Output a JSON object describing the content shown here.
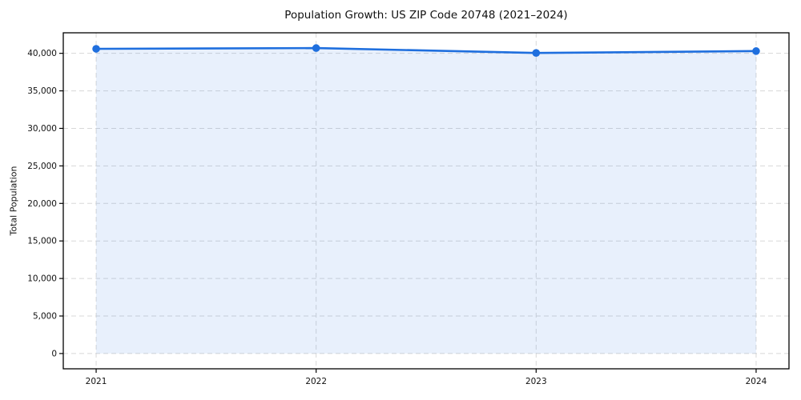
{
  "chart_data": {
    "type": "area",
    "title": "Population Growth: US ZIP Code 20748 (2021–2024)",
    "xlabel": "",
    "ylabel": "Total Population",
    "categories": [
      "2021",
      "2022",
      "2023",
      "2024"
    ],
    "values": [
      40600,
      40700,
      40050,
      40300
    ],
    "ylim": [
      -2035,
      42735
    ],
    "yticks": [
      0,
      5000,
      10000,
      15000,
      20000,
      25000,
      30000,
      35000,
      40000
    ],
    "ytick_labels": [
      "0",
      "5,000",
      "10,000",
      "15,000",
      "20,000",
      "25,000",
      "30,000",
      "35,000",
      "40,000"
    ],
    "grid": true,
    "grid_style": "dashed",
    "legend": false,
    "colors": {
      "line": "#1f6fde",
      "marker": "#1f6fde",
      "fill": "rgba(31,111,222,0.10)",
      "grid": "#d8d8d8",
      "frame": "#000000",
      "text": "#111111",
      "background": "#ffffff"
    }
  }
}
